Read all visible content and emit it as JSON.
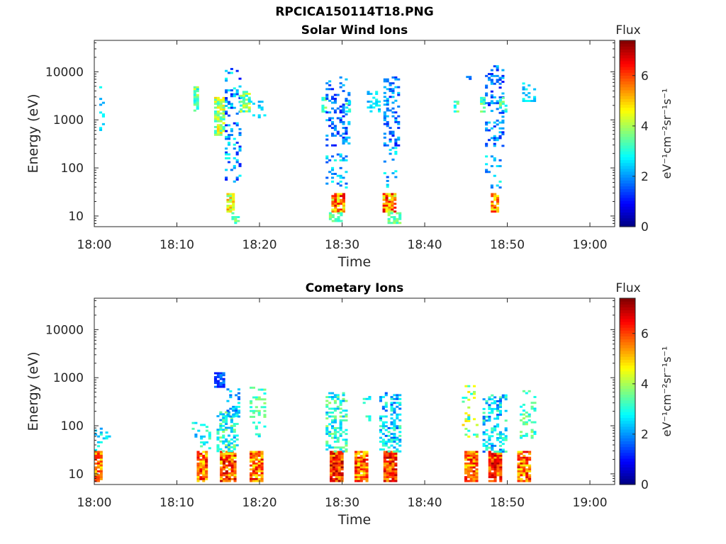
{
  "figure": {
    "title": "RPCICA150114T18.PNG"
  },
  "colorscale": {
    "label": "Flux",
    "unit": "eV⁻¹cm⁻²sr⁻¹s⁻¹",
    "min": 0,
    "max": 7.4,
    "ticks": [
      "0",
      "2",
      "4",
      "6"
    ],
    "colormap": "jet"
  },
  "chart_data": [
    {
      "type": "heatmap",
      "title": "Solar Wind Ions",
      "xlabel": "Time",
      "ylabel": "Energy (eV)",
      "xlim_minutes": [
        0,
        63
      ],
      "x_tick_labels": [
        "18:00",
        "18:10",
        "18:20",
        "18:30",
        "18:40",
        "18:50",
        "19:00"
      ],
      "ylim_eV": [
        6,
        45000
      ],
      "y_scale": "log",
      "y_tick_labels": [
        "10",
        "100",
        "1000",
        "10000"
      ],
      "clusters": [
        {
          "t": [
            0.6,
            1.2
          ],
          "e": [
            500,
            5000
          ],
          "flux": [
            2,
            3
          ],
          "density": 0.3
        },
        {
          "t": [
            12.0,
            12.6
          ],
          "e": [
            1500,
            5000
          ],
          "flux": [
            2.5,
            4.5
          ],
          "density": 0.8
        },
        {
          "t": [
            14.5,
            15.7
          ],
          "e": [
            500,
            3000
          ],
          "flux": [
            3,
            5
          ],
          "density": 0.85
        },
        {
          "t": [
            15.8,
            17.5
          ],
          "e": [
            50,
            12000
          ],
          "flux": [
            1,
            3
          ],
          "density": 0.3
        },
        {
          "t": [
            17.6,
            18.8
          ],
          "e": [
            1500,
            4000
          ],
          "flux": [
            2.5,
            4.5
          ],
          "density": 0.7
        },
        {
          "t": [
            18.8,
            20.8
          ],
          "e": [
            900,
            2500
          ],
          "flux": [
            2,
            3
          ],
          "density": 0.3
        },
        {
          "t": [
            16.0,
            17.0
          ],
          "e": [
            12,
            30
          ],
          "flux": [
            3.5,
            5.5
          ],
          "density": 0.85
        },
        {
          "t": [
            16.6,
            17.6
          ],
          "e": [
            7,
            12
          ],
          "flux": [
            3,
            4
          ],
          "density": 0.6
        },
        {
          "t": [
            27.5,
            28.0
          ],
          "e": [
            1500,
            3000
          ],
          "flux": [
            2.5,
            4
          ],
          "density": 0.7
        },
        {
          "t": [
            28.0,
            30.8
          ],
          "e": [
            300,
            8000
          ],
          "flux": [
            1,
            2.5
          ],
          "density": 0.3
        },
        {
          "t": [
            28.0,
            30.5
          ],
          "e": [
            40,
            200
          ],
          "flux": [
            1.5,
            3
          ],
          "density": 0.22
        },
        {
          "t": [
            28.7,
            30.3
          ],
          "e": [
            12,
            30
          ],
          "flux": [
            4,
            6.8
          ],
          "density": 0.9
        },
        {
          "t": [
            28.4,
            29.8
          ],
          "e": [
            8,
            12
          ],
          "flux": [
            3,
            4
          ],
          "density": 0.6
        },
        {
          "t": [
            30.4,
            31.0
          ],
          "e": [
            1500,
            2500
          ],
          "flux": [
            2.5,
            4
          ],
          "density": 0.5
        },
        {
          "t": [
            33.0,
            34.5
          ],
          "e": [
            1500,
            4000
          ],
          "flux": [
            2,
            3
          ],
          "density": 0.35
        },
        {
          "t": [
            35.0,
            36.8
          ],
          "e": [
            300,
            8000
          ],
          "flux": [
            1,
            2.5
          ],
          "density": 0.3
        },
        {
          "t": [
            35.0,
            36.5
          ],
          "e": [
            40,
            300
          ],
          "flux": [
            1.5,
            3
          ],
          "density": 0.22
        },
        {
          "t": [
            34.9,
            36.3
          ],
          "e": [
            12,
            30
          ],
          "flux": [
            4,
            6.8
          ],
          "density": 0.9
        },
        {
          "t": [
            35.5,
            37.1
          ],
          "e": [
            7,
            12
          ],
          "flux": [
            3,
            4
          ],
          "density": 0.65
        },
        {
          "t": [
            43.5,
            43.9
          ],
          "e": [
            1500,
            2500
          ],
          "flux": [
            2.5,
            4
          ],
          "density": 0.6
        },
        {
          "t": [
            45.0,
            45.5
          ],
          "e": [
            7000,
            9000
          ],
          "flux": [
            1,
            2
          ],
          "density": 0.4
        },
        {
          "t": [
            46.7,
            47.2
          ],
          "e": [
            1500,
            3000
          ],
          "flux": [
            2.5,
            4
          ],
          "density": 0.7
        },
        {
          "t": [
            47.3,
            49.6
          ],
          "e": [
            300,
            15000
          ],
          "flux": [
            1,
            2.5
          ],
          "density": 0.3
        },
        {
          "t": [
            47.3,
            49.2
          ],
          "e": [
            40,
            200
          ],
          "flux": [
            1.5,
            3
          ],
          "density": 0.22
        },
        {
          "t": [
            48.0,
            49.0
          ],
          "e": [
            12,
            30
          ],
          "flux": [
            4,
            6.5
          ],
          "density": 0.9
        },
        {
          "t": [
            49.0,
            50.0
          ],
          "e": [
            1500,
            3000
          ],
          "flux": [
            2.5,
            4
          ],
          "density": 0.45
        },
        {
          "t": [
            51.8,
            53.2
          ],
          "e": [
            2500,
            6000
          ],
          "flux": [
            2,
            3
          ],
          "density": 0.35
        }
      ]
    },
    {
      "type": "heatmap",
      "title": "Cometary Ions",
      "xlabel": "Time",
      "ylabel": "Energy (eV)",
      "xlim_minutes": [
        0,
        63
      ],
      "x_tick_labels": [
        "18:00",
        "18:10",
        "18:20",
        "18:30",
        "18:40",
        "18:50",
        "19:00"
      ],
      "ylim_eV": [
        6,
        45000
      ],
      "y_scale": "log",
      "y_tick_labels": [
        "10",
        "100",
        "1000",
        "10000"
      ],
      "clusters": [
        {
          "t": [
            0.0,
            1.0
          ],
          "e": [
            7,
            30
          ],
          "flux": [
            4.5,
            6.5
          ],
          "density": 0.9
        },
        {
          "t": [
            0.0,
            2.0
          ],
          "e": [
            30,
            110
          ],
          "flux": [
            2,
            3.5
          ],
          "density": 0.2
        },
        {
          "t": [
            12.4,
            13.6
          ],
          "e": [
            7,
            30
          ],
          "flux": [
            4.5,
            6.8
          ],
          "density": 0.9
        },
        {
          "t": [
            11.8,
            14.0
          ],
          "e": [
            35,
            120
          ],
          "flux": [
            2,
            3.5
          ],
          "density": 0.2
        },
        {
          "t": [
            14.5,
            15.6
          ],
          "e": [
            650,
            1300
          ],
          "flux": [
            1,
            2
          ],
          "density": 0.9
        },
        {
          "t": [
            15.2,
            17.0
          ],
          "e": [
            7,
            30
          ],
          "flux": [
            4.5,
            7
          ],
          "density": 0.9
        },
        {
          "t": [
            14.8,
            17.4
          ],
          "e": [
            30,
            200
          ],
          "flux": [
            2,
            4
          ],
          "density": 0.45
        },
        {
          "t": [
            16.0,
            17.4
          ],
          "e": [
            150,
            600
          ],
          "flux": [
            1.5,
            3
          ],
          "density": 0.35
        },
        {
          "t": [
            18.8,
            20.2
          ],
          "e": [
            7,
            30
          ],
          "flux": [
            4.5,
            6.8
          ],
          "density": 0.9
        },
        {
          "t": [
            18.8,
            20.8
          ],
          "e": [
            60,
            650
          ],
          "flux": [
            2.5,
            4
          ],
          "density": 0.2
        },
        {
          "t": [
            28.5,
            30.0
          ],
          "e": [
            7,
            30
          ],
          "flux": [
            5,
            7.2
          ],
          "density": 0.92
        },
        {
          "t": [
            28.0,
            30.5
          ],
          "e": [
            30,
            500
          ],
          "flux": [
            2,
            4
          ],
          "density": 0.45
        },
        {
          "t": [
            31.5,
            33.0
          ],
          "e": [
            7,
            30
          ],
          "flux": [
            4.5,
            6.8
          ],
          "density": 0.9
        },
        {
          "t": [
            32.5,
            33.5
          ],
          "e": [
            100,
            550
          ],
          "flux": [
            2.5,
            3.5
          ],
          "density": 0.2
        },
        {
          "t": [
            35.0,
            36.5
          ],
          "e": [
            7,
            30
          ],
          "flux": [
            5,
            7.2
          ],
          "density": 0.92
        },
        {
          "t": [
            34.5,
            37.0
          ],
          "e": [
            30,
            500
          ],
          "flux": [
            1.5,
            3.5
          ],
          "density": 0.45
        },
        {
          "t": [
            44.8,
            46.3
          ],
          "e": [
            7,
            30
          ],
          "flux": [
            4.5,
            6.8
          ],
          "density": 0.9
        },
        {
          "t": [
            44.5,
            46.5
          ],
          "e": [
            60,
            700
          ],
          "flux": [
            2.5,
            5
          ],
          "density": 0.25
        },
        {
          "t": [
            47.7,
            49.2
          ],
          "e": [
            7,
            30
          ],
          "flux": [
            5,
            7.2
          ],
          "density": 0.92
        },
        {
          "t": [
            47.0,
            49.8
          ],
          "e": [
            30,
            450
          ],
          "flux": [
            1.5,
            3.5
          ],
          "density": 0.45
        },
        {
          "t": [
            51.2,
            52.6
          ],
          "e": [
            7,
            30
          ],
          "flux": [
            4.5,
            6.8
          ],
          "density": 0.9
        },
        {
          "t": [
            51.5,
            53.2
          ],
          "e": [
            50,
            550
          ],
          "flux": [
            2.5,
            4
          ],
          "density": 0.25
        }
      ]
    }
  ]
}
